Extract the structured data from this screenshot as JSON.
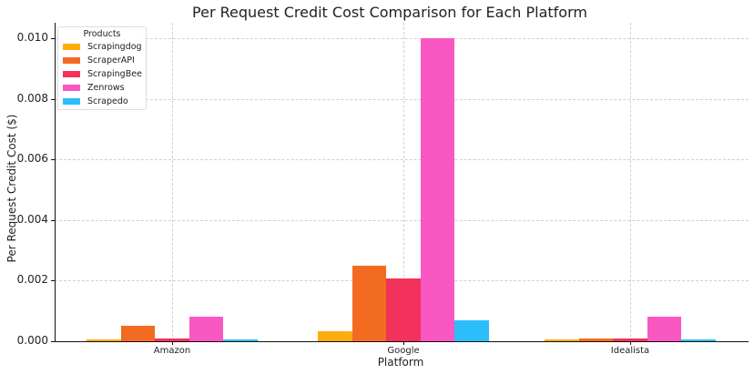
{
  "chart_data": {
    "type": "bar",
    "title": "Per Request Credit Cost Comparison for Each Platform",
    "xlabel": "Platform",
    "ylabel": "Per Request Credit Cost ($)",
    "categories": [
      "Amazon",
      "Google",
      "Idealista"
    ],
    "series": [
      {
        "name": "Scrapingdog",
        "color": "#ffad0c",
        "values": [
          5e-05,
          0.00033,
          5e-05
        ]
      },
      {
        "name": "ScraperAPI",
        "color": "#f26b21",
        "values": [
          0.0005,
          0.0025,
          8e-05
        ]
      },
      {
        "name": "ScrapingBee",
        "color": "#f2325a",
        "values": [
          8e-05,
          0.00208,
          8e-05
        ]
      },
      {
        "name": "Zenrows",
        "color": "#f957c2",
        "values": [
          0.0008,
          0.01,
          0.0008
        ]
      },
      {
        "name": "Scrapedo",
        "color": "#2cbdfb",
        "values": [
          5e-05,
          0.0007,
          5e-05
        ]
      }
    ],
    "ylim": [
      0,
      0.0105
    ],
    "yticks": [
      "0.000",
      "0.002",
      "0.004",
      "0.006",
      "0.008",
      "0.010"
    ],
    "grid": true,
    "legend": {
      "title": "Products",
      "position": "upper left"
    }
  }
}
